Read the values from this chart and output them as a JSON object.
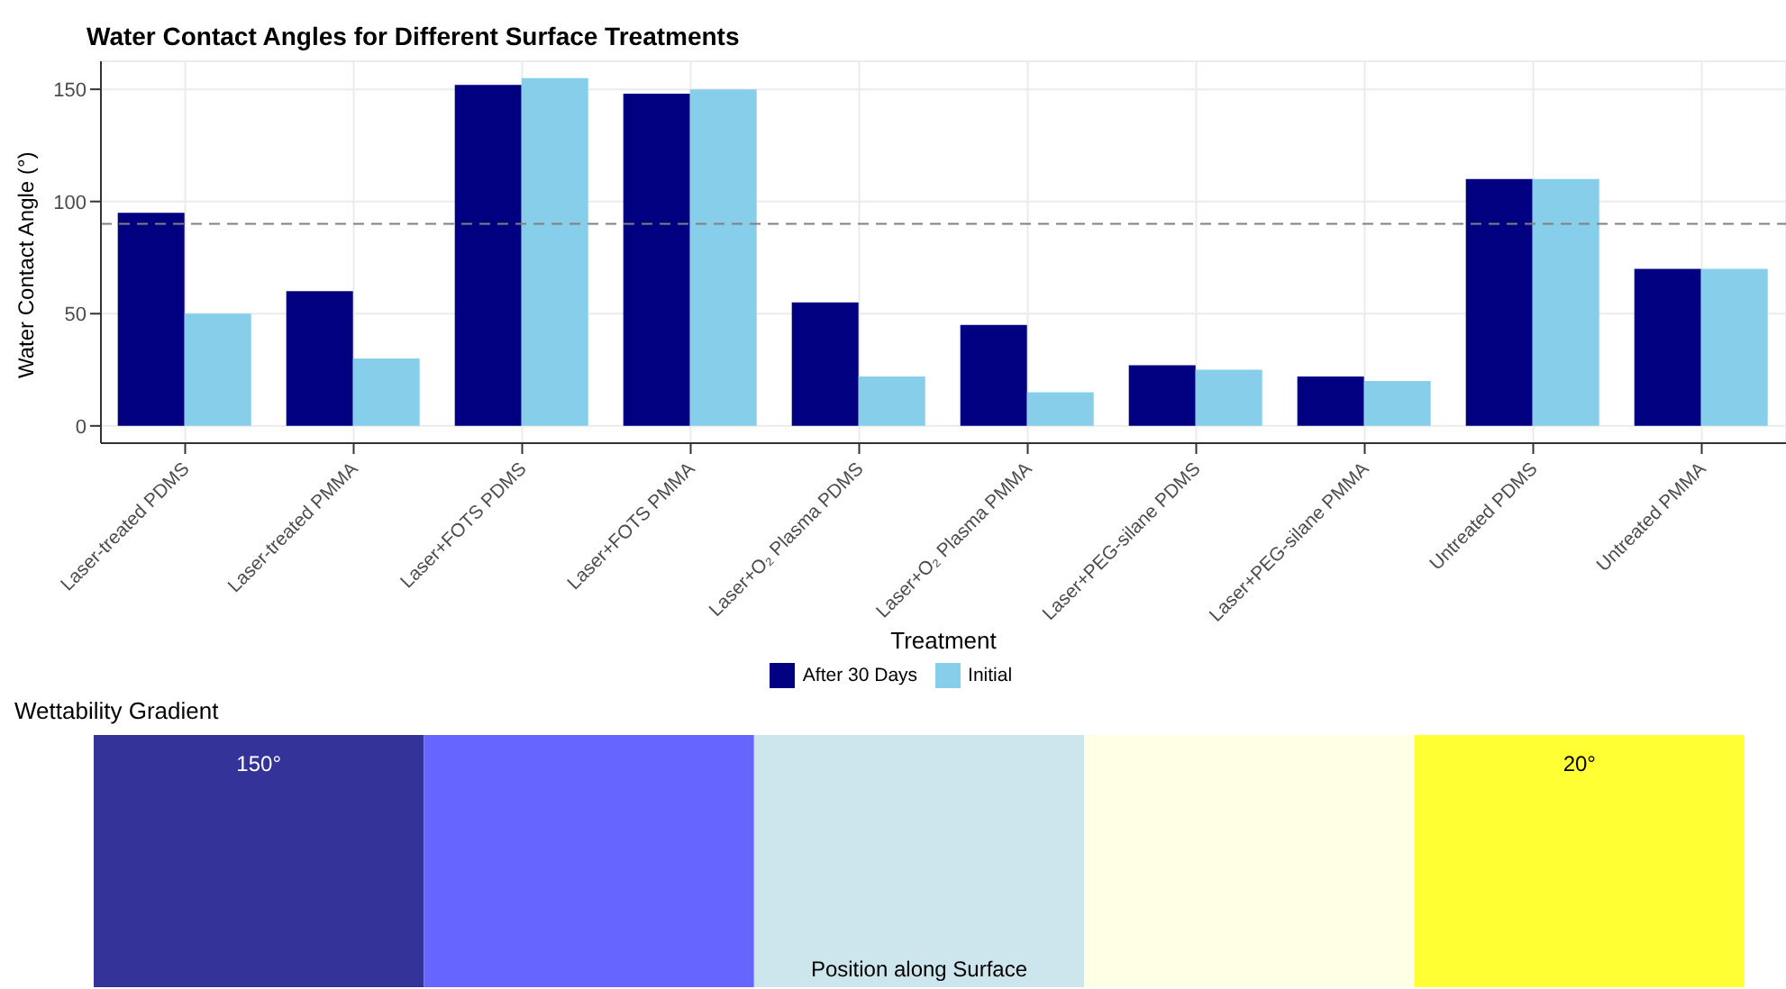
{
  "chart_data": [
    {
      "type": "bar",
      "title": "Water Contact Angles for Different Surface Treatments",
      "xlabel": "Treatment",
      "ylabel": "Water Contact Angle (°)",
      "categories": [
        "Laser-treated PDMS",
        "Laser-treated PMMA",
        "Laser+FOTS PDMS",
        "Laser+FOTS PMMA",
        "Laser+O₂ Plasma PDMS",
        "Laser+O₂ Plasma PMMA",
        "Laser+PEG-silane PDMS",
        "Laser+PEG-silane PMMA",
        "Untreated PDMS",
        "Untreated PMMA"
      ],
      "series": [
        {
          "name": "After 30 Days",
          "color": "#000080",
          "values": [
            95,
            60,
            152,
            148,
            55,
            45,
            27,
            22,
            110,
            70
          ]
        },
        {
          "name": "Initial",
          "color": "#87ceeb",
          "values": [
            50,
            30,
            155,
            150,
            22,
            15,
            25,
            20,
            110,
            70
          ]
        }
      ],
      "ylim": [
        -7.7,
        162.5
      ],
      "yticks": [
        0,
        50,
        100,
        150
      ],
      "grid": true,
      "legend": "bottom",
      "ref_lines": [
        {
          "axis": "y",
          "value": 90,
          "color": "#808080",
          "line_style": "dashed"
        }
      ]
    },
    {
      "type": "other",
      "title": "Wettability Gradient",
      "xlabel": "Position along Surface",
      "categories": [
        null,
        null,
        null,
        null,
        null
      ],
      "colors": [
        "#333399",
        "#6666ff",
        "#cde6ee",
        "#ffffe6",
        "#ffff33"
      ],
      "cell_labels": [
        [
          "150°",
          null,
          null,
          null,
          "20°"
        ]
      ]
    }
  ]
}
